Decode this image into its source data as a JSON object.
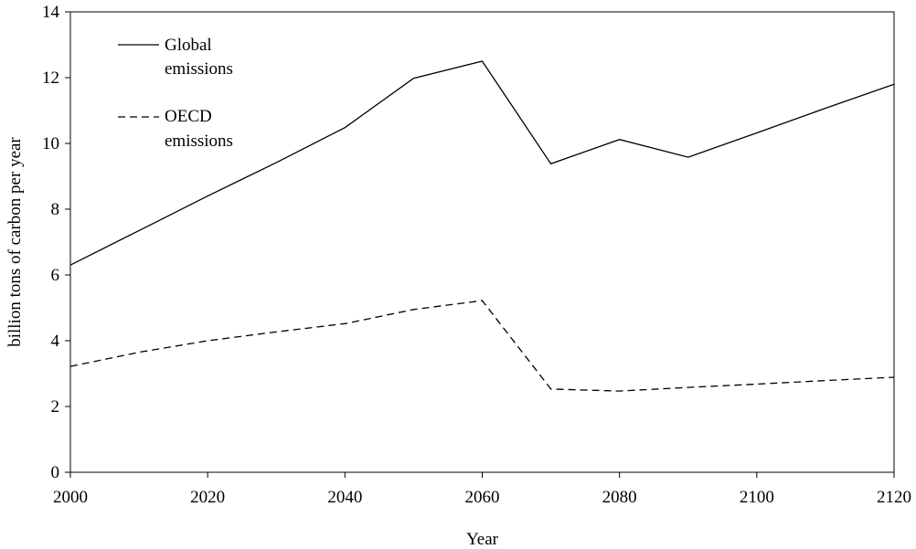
{
  "chart_data": {
    "type": "line",
    "title": "",
    "xlabel": "Year",
    "ylabel": "billion tons of carbon per year",
    "xlim": [
      2000,
      2120
    ],
    "ylim": [
      0,
      14
    ],
    "x_ticks": [
      "2000",
      "2020",
      "2040",
      "2060",
      "2080",
      "2100",
      "2120"
    ],
    "y_ticks": [
      "0",
      "2",
      "4",
      "6",
      "8",
      "10",
      "12",
      "14"
    ],
    "grid": false,
    "legend_position": "top-left",
    "series": [
      {
        "name": "Global emissions",
        "legend_lines": [
          "Global",
          "emissions"
        ],
        "style": "solid",
        "color": "#000000",
        "x": [
          2000,
          2010,
          2020,
          2030,
          2040,
          2050,
          2060,
          2070,
          2080,
          2090,
          2100,
          2110,
          2120
        ],
        "y": [
          6.3,
          7.35,
          8.4,
          9.42,
          10.48,
          11.98,
          12.5,
          9.38,
          10.12,
          9.58,
          10.32,
          11.07,
          11.8
        ]
      },
      {
        "name": "OECD emissions",
        "legend_lines": [
          "OECD",
          "emissions"
        ],
        "style": "dashed",
        "color": "#000000",
        "x": [
          2000,
          2010,
          2020,
          2030,
          2040,
          2050,
          2060,
          2070,
          2080,
          2090,
          2100,
          2110,
          2120
        ],
        "y": [
          3.22,
          3.65,
          4.0,
          4.27,
          4.52,
          4.95,
          5.22,
          2.53,
          2.47,
          2.58,
          2.68,
          2.79,
          2.89
        ]
      }
    ]
  }
}
